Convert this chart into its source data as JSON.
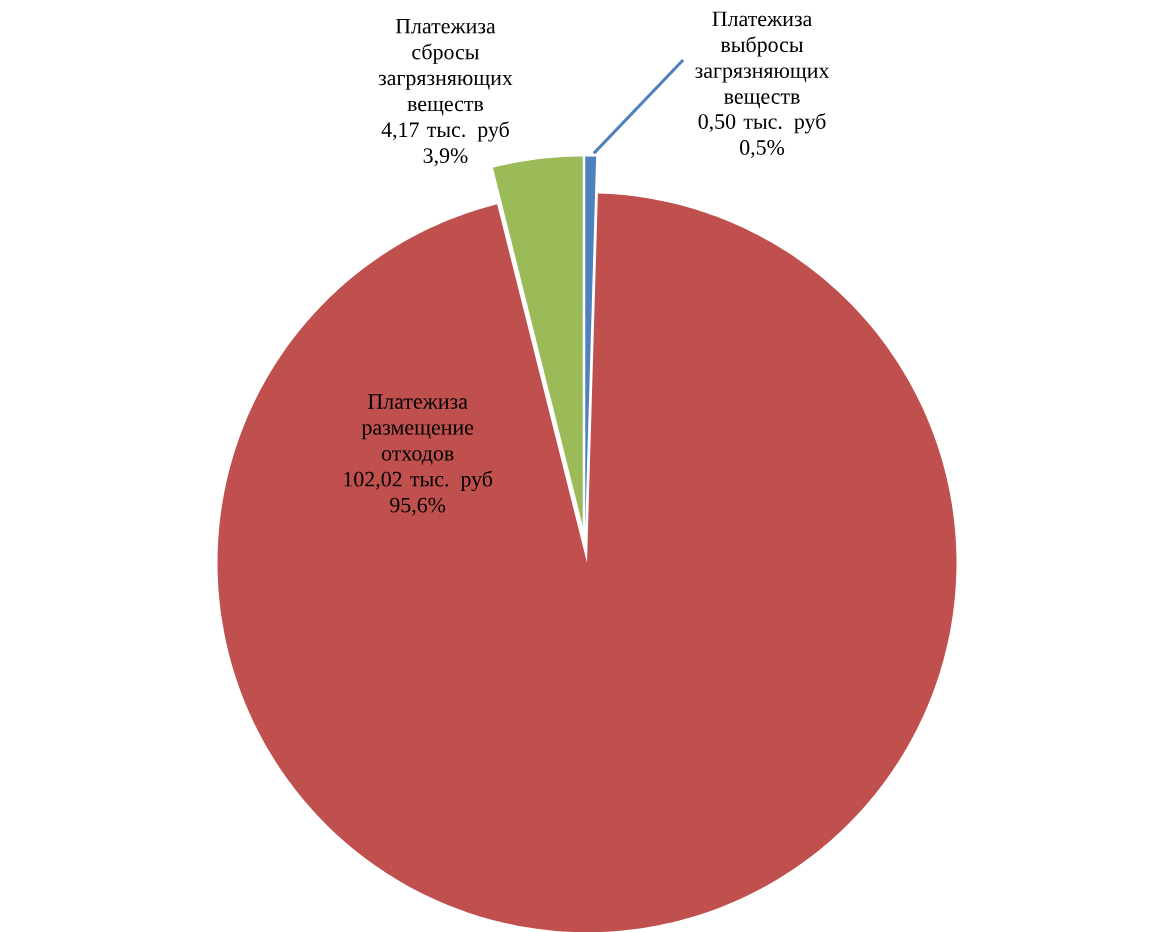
{
  "chart_data": {
    "type": "pie",
    "categories": [
      "Платежиза выбросы загрязняющих веществ",
      "Платежиза размещение отходов",
      "Платежиза сбросы загрязняющих веществ"
    ],
    "values": [
      0.5,
      102.02,
      4.17
    ],
    "value_labels": [
      "0,50 тыс. руб",
      "102,02 тыс. руб",
      "4,17 тыс. руб"
    ],
    "annotations": [
      "0,5%",
      "95,6%",
      "3,9%"
    ],
    "colors": [
      "#4f81bd",
      "#c0504d",
      "#9bbb59"
    ],
    "legend": false
  }
}
